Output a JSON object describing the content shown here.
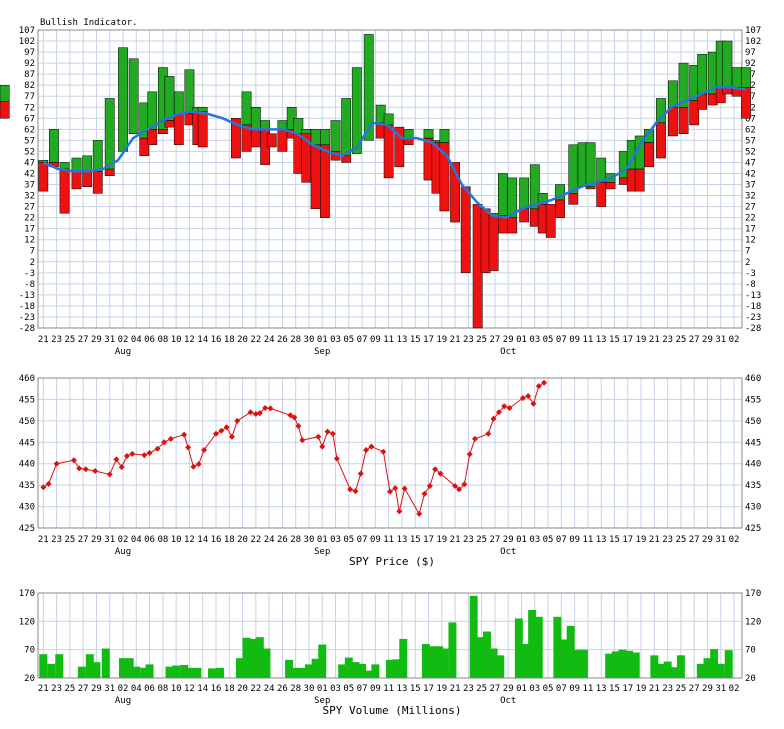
{
  "chart_data": [
    {
      "type": "bar",
      "title": "Bullish Indicator.",
      "ylim": [
        -28,
        107
      ],
      "y_ticks": [
        107,
        102,
        97,
        92,
        87,
        82,
        77,
        72,
        67,
        62,
        57,
        52,
        47,
        42,
        37,
        32,
        27,
        22,
        17,
        12,
        7,
        2,
        -3,
        -8,
        -13,
        -18,
        -23,
        -28
      ],
      "x_tick_labels": [
        "21",
        "23",
        "25",
        "27",
        "29",
        "31",
        "02",
        "04",
        "06",
        "08",
        "10",
        "12",
        "14",
        "16",
        "18",
        "20",
        "22",
        "24",
        "26",
        "28",
        "30",
        "01",
        "03",
        "05",
        "07",
        "09",
        "11",
        "13",
        "15",
        "17",
        "19",
        "21",
        "23",
        "25",
        "27",
        "29",
        "01",
        "03",
        "05",
        "07",
        "09",
        "11",
        "13",
        "15",
        "17",
        "19",
        "21",
        "23",
        "25",
        "27",
        "29",
        "31",
        "02"
      ],
      "month_labels": [
        {
          "label": "Aug",
          "tick": 6
        },
        {
          "label": "Sep",
          "tick": 21
        },
        {
          "label": "Oct",
          "tick": 35
        }
      ],
      "grid": true,
      "bars": [
        [
          48,
          34
        ],
        [
          62,
          45
        ],
        [
          47,
          24
        ],
        [
          49,
          35
        ],
        [
          50,
          36
        ],
        [
          57,
          33
        ],
        [
          76,
          41
        ],
        [
          99,
          52
        ],
        [
          94,
          60
        ],
        [
          74,
          50
        ],
        [
          79,
          55
        ],
        [
          90,
          60
        ],
        [
          86,
          63
        ],
        [
          79,
          55
        ],
        [
          89,
          64
        ],
        [
          72,
          55
        ],
        [
          72,
          54
        ],
        [
          67,
          49
        ],
        [
          79,
          52
        ],
        [
          72,
          54
        ],
        [
          66,
          46
        ],
        [
          60,
          54
        ],
        [
          66,
          52
        ],
        [
          72,
          58
        ],
        [
          67,
          42
        ],
        [
          62,
          38
        ],
        [
          62,
          26
        ],
        [
          62,
          22
        ],
        [
          66,
          48
        ],
        [
          76,
          47
        ],
        [
          90,
          51
        ],
        [
          105,
          57
        ],
        [
          73,
          58
        ],
        [
          69,
          40
        ],
        [
          63,
          45
        ],
        [
          62,
          55
        ],
        [
          62,
          39
        ],
        [
          57,
          33
        ],
        [
          62,
          25
        ],
        [
          47,
          20
        ],
        [
          36,
          -3
        ],
        [
          28,
          -28
        ],
        [
          26,
          -3
        ],
        [
          24,
          -2
        ],
        [
          42,
          15
        ],
        [
          40,
          15
        ],
        [
          40,
          20
        ],
        [
          46,
          18
        ],
        [
          33,
          15
        ],
        [
          28,
          13
        ],
        [
          37,
          22
        ],
        [
          55,
          28
        ],
        [
          56,
          36
        ],
        [
          56,
          35
        ],
        [
          49,
          27
        ],
        [
          42,
          35
        ],
        [
          52,
          37
        ],
        [
          57,
          34
        ],
        [
          59,
          34
        ],
        [
          62,
          45
        ],
        [
          76,
          49
        ],
        [
          84,
          59
        ],
        [
          92,
          60
        ],
        [
          91,
          64
        ],
        [
          96,
          71
        ],
        [
          97,
          73
        ],
        [
          102,
          74
        ],
        [
          102,
          78
        ],
        [
          90,
          77
        ],
        [
          90,
          67
        ],
        [
          82,
          67
        ]
      ],
      "bar_tick_positions": [
        0,
        0.8,
        1.6,
        2.5,
        3.3,
        4.1,
        5,
        6,
        6.8,
        7.6,
        8.2,
        9,
        9.5,
        10.2,
        11,
        11.6,
        12,
        14.5,
        15.3,
        16,
        16.7,
        17.2,
        18,
        18.7,
        19.2,
        19.8,
        20.5,
        21.2,
        22,
        22.8,
        23.6,
        24.5,
        25.4,
        26,
        26.8,
        27.5,
        29,
        29.6,
        30.2,
        31,
        31.8,
        32.7,
        33.3,
        33.9,
        34.6,
        35.3,
        36.2,
        37,
        37.6,
        38.2,
        38.9,
        39.9,
        40.6,
        41.2,
        42,
        42.7,
        43.7,
        44.3,
        44.9,
        45.6,
        46.5,
        47.4,
        48.2,
        49,
        49.6,
        50.4,
        51,
        51.5,
        52.2,
        52.9
      ],
      "moving_average": [
        [
          0,
          47
        ],
        [
          1,
          44
        ],
        [
          2,
          43
        ],
        [
          3,
          43
        ],
        [
          4,
          44
        ],
        [
          5,
          48
        ],
        [
          6,
          58
        ],
        [
          7,
          62
        ],
        [
          8,
          66
        ],
        [
          9,
          69
        ],
        [
          10,
          70
        ],
        [
          11,
          69
        ],
        [
          12,
          67
        ],
        [
          13,
          64
        ],
        [
          14,
          62
        ],
        [
          15,
          62
        ],
        [
          16,
          62
        ],
        [
          17,
          60
        ],
        [
          18,
          55
        ],
        [
          19,
          52
        ],
        [
          20,
          50
        ],
        [
          21,
          54
        ],
        [
          22,
          65
        ],
        [
          23,
          64
        ],
        [
          24,
          58
        ],
        [
          25,
          58
        ],
        [
          26,
          56
        ],
        [
          27,
          50
        ],
        [
          28,
          37
        ],
        [
          29,
          29
        ],
        [
          30,
          23
        ],
        [
          31,
          22
        ],
        [
          32,
          26
        ],
        [
          33,
          28
        ],
        [
          34,
          30
        ],
        [
          35,
          33
        ],
        [
          36,
          36
        ],
        [
          37,
          38
        ],
        [
          38,
          40
        ],
        [
          39,
          44
        ],
        [
          40,
          56
        ],
        [
          41,
          65
        ],
        [
          42,
          72
        ],
        [
          43,
          75
        ],
        [
          44,
          78
        ],
        [
          45,
          81
        ],
        [
          46,
          81
        ],
        [
          47,
          80
        ]
      ]
    },
    {
      "type": "line",
      "xlabel": "SPY Price ($)",
      "ylim": [
        425,
        460
      ],
      "y_ticks": [
        460,
        455,
        450,
        445,
        440,
        435,
        430,
        425
      ],
      "points": [
        [
          0,
          434.5
        ],
        [
          0.4,
          435.3
        ],
        [
          1,
          440
        ],
        [
          2.3,
          440.8
        ],
        [
          2.7,
          438.9
        ],
        [
          3.2,
          438.7
        ],
        [
          3.9,
          438.3
        ],
        [
          5,
          437.5
        ],
        [
          5.5,
          441
        ],
        [
          5.9,
          439.2
        ],
        [
          6.3,
          441.8
        ],
        [
          6.7,
          442.3
        ],
        [
          7.6,
          442
        ],
        [
          8,
          442.5
        ],
        [
          8.6,
          443.5
        ],
        [
          9.1,
          445
        ],
        [
          9.6,
          445.8
        ],
        [
          10.6,
          446.8
        ],
        [
          10.9,
          443.8
        ],
        [
          11.3,
          439.3
        ],
        [
          11.7,
          439.9
        ],
        [
          12.1,
          443.2
        ],
        [
          13,
          447
        ],
        [
          13.4,
          447.7
        ],
        [
          13.8,
          448.5
        ],
        [
          14.2,
          446.3
        ],
        [
          14.6,
          450
        ],
        [
          15.6,
          452
        ],
        [
          16,
          451.6
        ],
        [
          16.3,
          451.8
        ],
        [
          16.7,
          453
        ],
        [
          17.1,
          452.9
        ],
        [
          18.6,
          451.3
        ],
        [
          18.9,
          450.8
        ],
        [
          19.2,
          448.8
        ],
        [
          19.5,
          445.5
        ],
        [
          20.7,
          446.3
        ],
        [
          21,
          444
        ],
        [
          21.4,
          447.5
        ],
        [
          21.8,
          447
        ],
        [
          22.1,
          441.2
        ],
        [
          23.1,
          434
        ],
        [
          23.5,
          433.6
        ],
        [
          23.9,
          437.7
        ],
        [
          24.3,
          443.2
        ],
        [
          24.7,
          444
        ],
        [
          25.6,
          442.8
        ],
        [
          26.1,
          433.5
        ],
        [
          26.5,
          434.3
        ],
        [
          26.8,
          428.9
        ],
        [
          27.2,
          434.2
        ],
        [
          28.3,
          428.3
        ],
        [
          28.7,
          433
        ],
        [
          29.1,
          434.8
        ],
        [
          29.5,
          438.7
        ],
        [
          29.9,
          437.7
        ],
        [
          31,
          434.8
        ],
        [
          31.3,
          434
        ],
        [
          31.7,
          435.2
        ],
        [
          32.1,
          442.2
        ],
        [
          32.5,
          445.8
        ],
        [
          33.5,
          447
        ],
        [
          33.9,
          450.5
        ],
        [
          34.3,
          452
        ],
        [
          34.7,
          453.4
        ],
        [
          35.1,
          453
        ],
        [
          36.1,
          455.3
        ],
        [
          36.5,
          455.8
        ],
        [
          36.9,
          454
        ],
        [
          37.3,
          458.1
        ],
        [
          37.7,
          458.9
        ]
      ]
    },
    {
      "type": "bar",
      "xlabel": "SPY Volume (Millions)",
      "ylim": [
        20,
        170
      ],
      "y_ticks": [
        170,
        120,
        70,
        20
      ],
      "values": [
        [
          0,
          62
        ],
        [
          0.6,
          45
        ],
        [
          1.2,
          62
        ],
        [
          2.9,
          40
        ],
        [
          3.5,
          62
        ],
        [
          4,
          48
        ],
        [
          4.7,
          72
        ],
        [
          6,
          55
        ],
        [
          6.5,
          55
        ],
        [
          7,
          40
        ],
        [
          7.6,
          38
        ],
        [
          8,
          44
        ],
        [
          9.5,
          40
        ],
        [
          10,
          42
        ],
        [
          10.6,
          43
        ],
        [
          11.1,
          38
        ],
        [
          11.6,
          38
        ],
        [
          12.7,
          37
        ],
        [
          13.3,
          38
        ],
        [
          14.8,
          55
        ],
        [
          15.3,
          91
        ],
        [
          15.8,
          89
        ],
        [
          16.3,
          92
        ],
        [
          16.8,
          72
        ],
        [
          18.5,
          52
        ],
        [
          19,
          38
        ],
        [
          19.5,
          38
        ],
        [
          20,
          44
        ],
        [
          20.5,
          54
        ],
        [
          21,
          79
        ],
        [
          22.5,
          44
        ],
        [
          23,
          56
        ],
        [
          23.5,
          48
        ],
        [
          24,
          45
        ],
        [
          24.5,
          33
        ],
        [
          25,
          44
        ],
        [
          26.1,
          52
        ],
        [
          26.6,
          53
        ],
        [
          27.1,
          89
        ],
        [
          28.8,
          80
        ],
        [
          29.3,
          76
        ],
        [
          29.8,
          76
        ],
        [
          30.2,
          72
        ],
        [
          30.8,
          118
        ],
        [
          32.4,
          165
        ],
        [
          32.9,
          92
        ],
        [
          33.4,
          102
        ],
        [
          33.9,
          72
        ],
        [
          34.4,
          60
        ],
        [
          35.8,
          125
        ],
        [
          36.3,
          80
        ],
        [
          36.8,
          140
        ],
        [
          37.3,
          128
        ],
        [
          38.7,
          128
        ],
        [
          39.2,
          88
        ],
        [
          39.7,
          112
        ],
        [
          40.2,
          70
        ],
        [
          40.7,
          70
        ],
        [
          42.6,
          63
        ],
        [
          43.1,
          67
        ],
        [
          43.6,
          70
        ],
        [
          44.1,
          68
        ],
        [
          44.6,
          65
        ],
        [
          46,
          60
        ],
        [
          46.5,
          45
        ],
        [
          47,
          49
        ],
        [
          47.5,
          39
        ],
        [
          48,
          60
        ],
        [
          49.5,
          45
        ],
        [
          50,
          55
        ],
        [
          50.5,
          71
        ],
        [
          51,
          45
        ],
        [
          51.6,
          69
        ]
      ]
    }
  ],
  "colors": {
    "grid": "#c8d2e6",
    "green_bar": "#22aa22",
    "red_bar": "#ee1111",
    "ma_line": "#2277dd",
    "price_line": "#dd1111",
    "volume_bar": "#11bb11"
  }
}
